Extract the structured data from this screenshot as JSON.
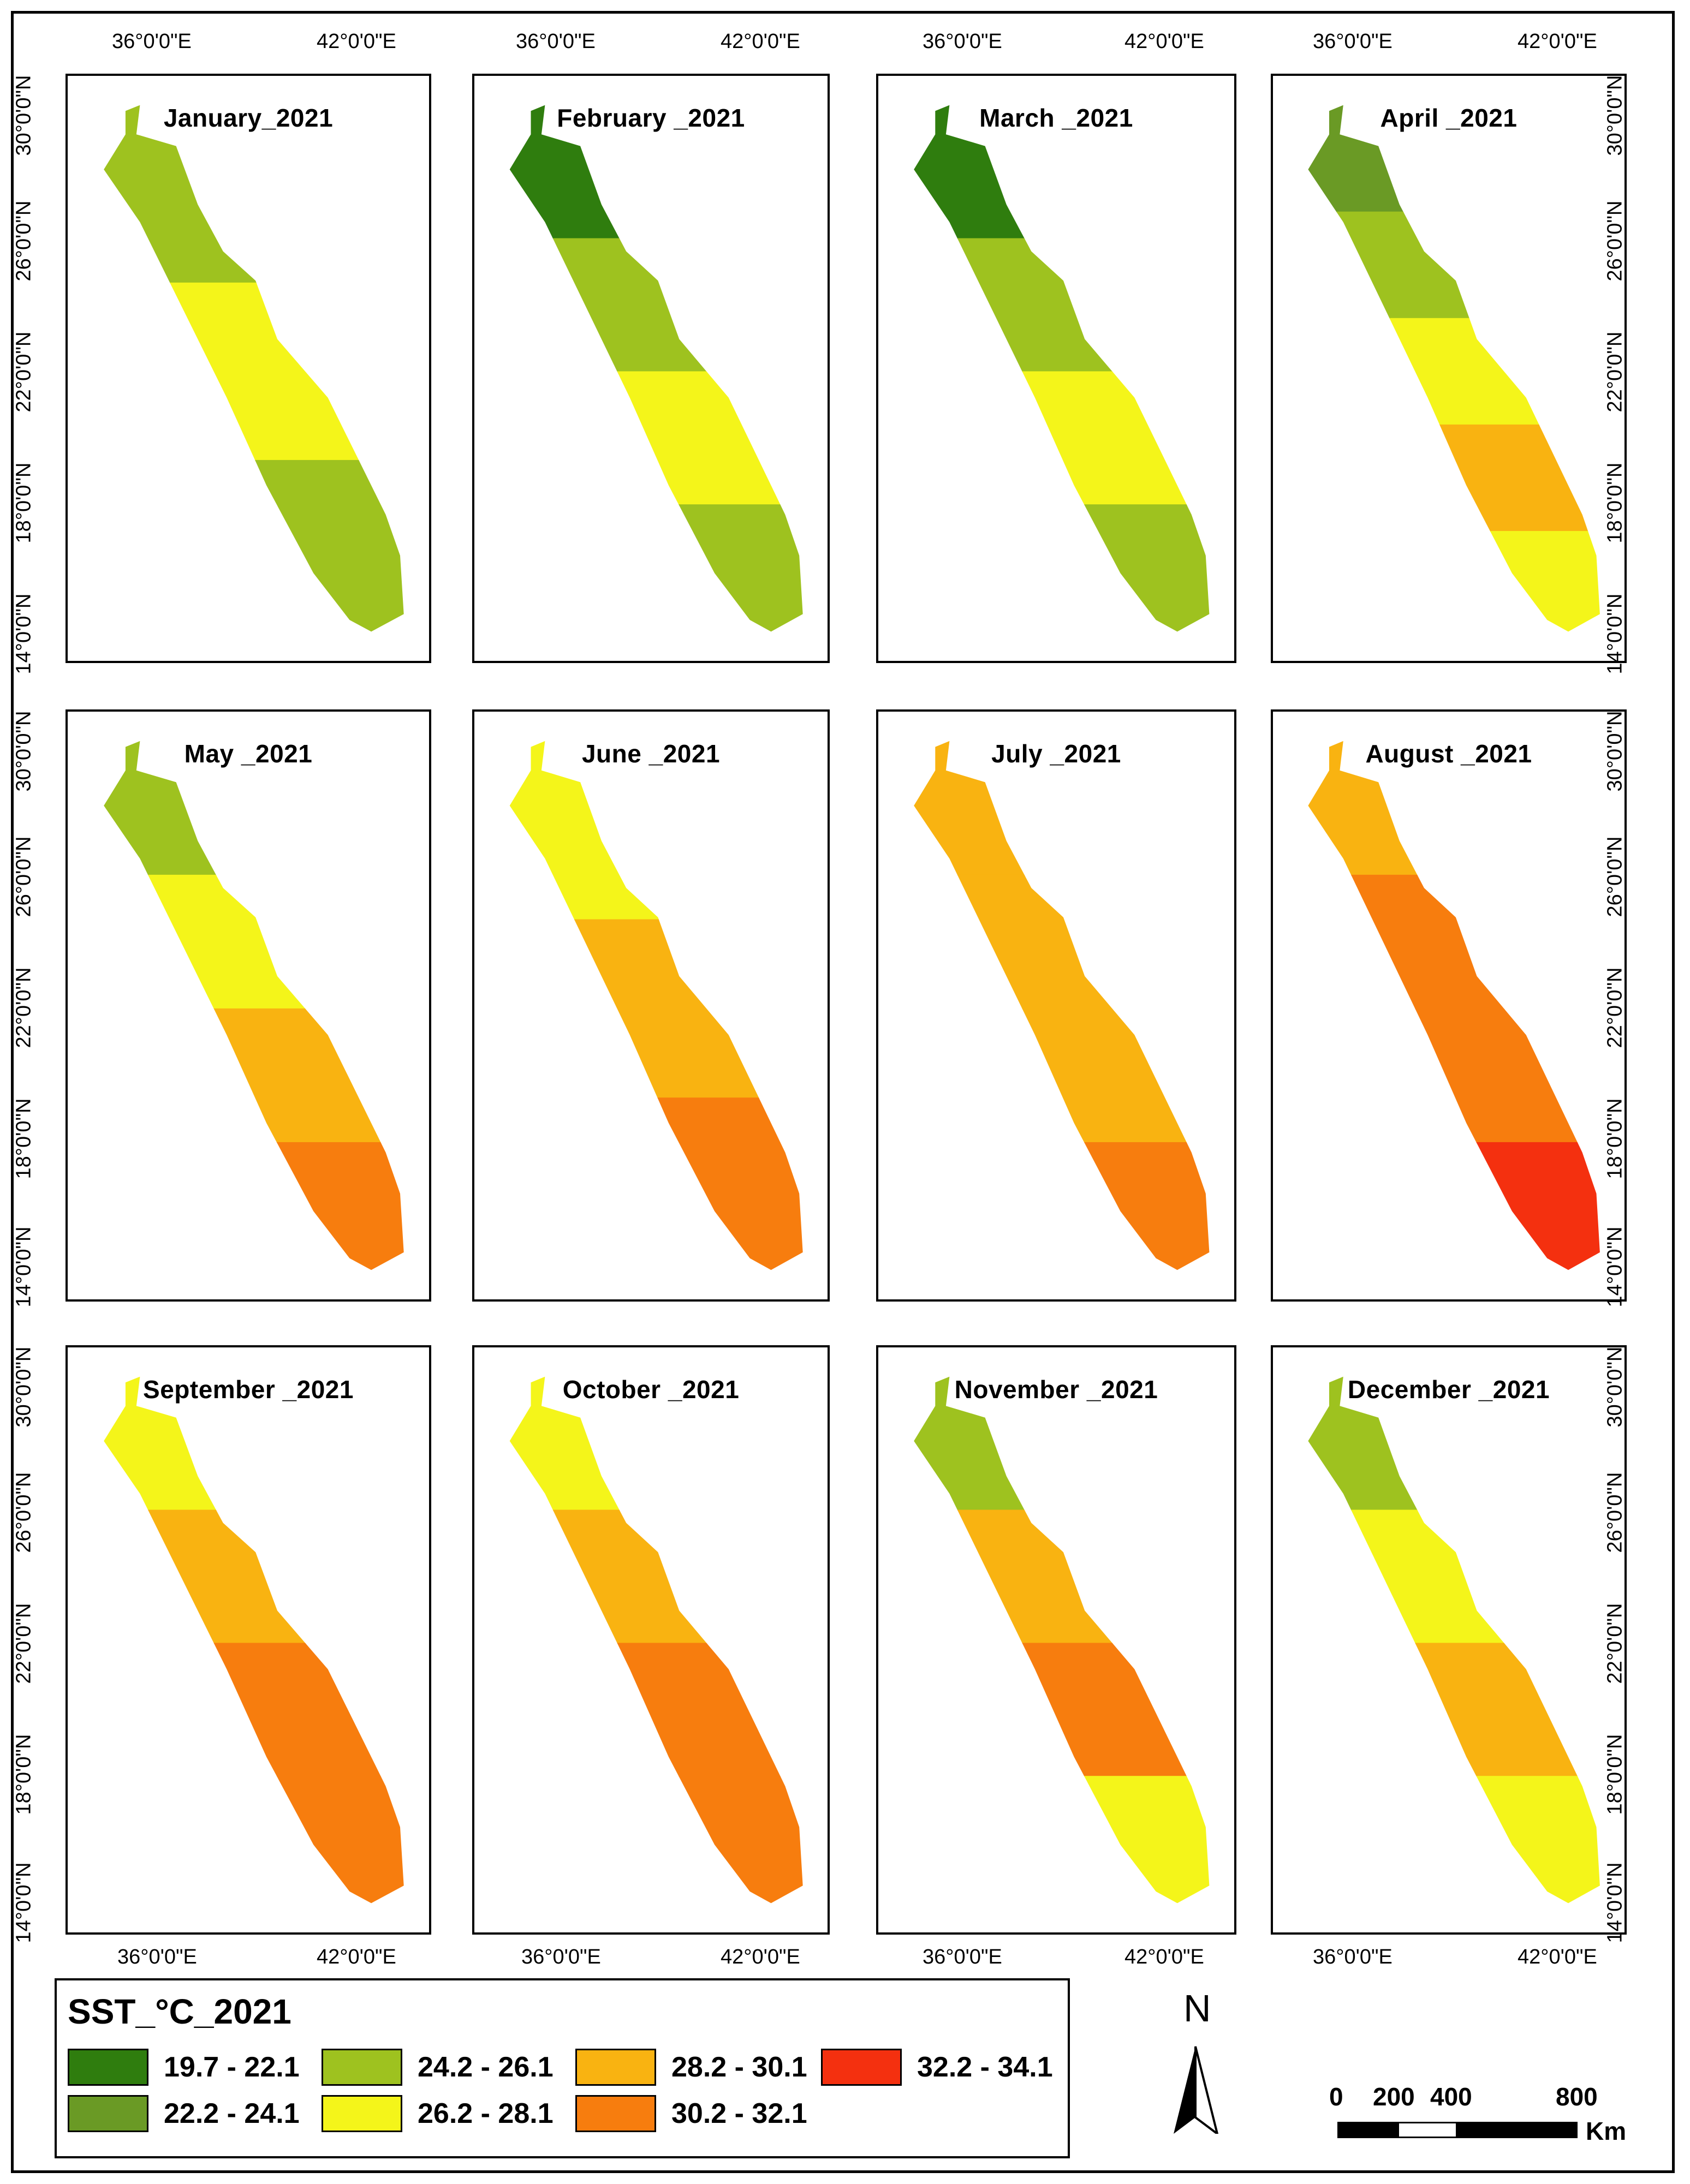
{
  "colors": {
    "c1": "#2f7d0e",
    "c2": "#6a9a25",
    "c3": "#9ec21f",
    "c4": "#f4f51a",
    "c5": "#f9b311",
    "c6": "#f77d0e",
    "c7": "#f4300f"
  },
  "axes": {
    "lon_left": "36°0'0\"E",
    "lon_right": "42°0'0\"E",
    "lat_labels": [
      "30°0'0\"N",
      "26°0'0\"N",
      "22°0'0\"N",
      "18°0'0\"N",
      "14°0'0\"N"
    ]
  },
  "panels": [
    {
      "title": "January_2021",
      "zones": [
        "c3",
        "c4",
        "c3"
      ]
    },
    {
      "title": "February _2021",
      "zones": [
        "c1",
        "c3",
        "c4",
        "c3"
      ]
    },
    {
      "title": "March _2021",
      "zones": [
        "c1",
        "c3",
        "c4",
        "c3"
      ]
    },
    {
      "title": "April _2021",
      "zones": [
        "c2",
        "c3",
        "c4",
        "c5",
        "c4"
      ]
    },
    {
      "title": "May _2021",
      "zones": [
        "c3",
        "c4",
        "c5",
        "c6"
      ]
    },
    {
      "title": "June _2021",
      "zones": [
        "c4",
        "c5",
        "c6"
      ]
    },
    {
      "title": "July _2021",
      "zones": [
        "c5",
        "c5",
        "c5",
        "c6"
      ]
    },
    {
      "title": "August _2021",
      "zones": [
        "c5",
        "c6",
        "c6",
        "c7"
      ]
    },
    {
      "title": "September _2021",
      "zones": [
        "c4",
        "c5",
        "c6",
        "c6"
      ]
    },
    {
      "title": "October _2021",
      "zones": [
        "c4",
        "c5",
        "c6",
        "c6"
      ]
    },
    {
      "title": "November _2021",
      "zones": [
        "c3",
        "c5",
        "c6",
        "c4"
      ]
    },
    {
      "title": "December _2021",
      "zones": [
        "c3",
        "c4",
        "c5",
        "c4"
      ]
    }
  ],
  "legend": {
    "title": "SST_°C_2021",
    "items": [
      {
        "range": "19.7 - 22.1",
        "color": "#2f7d0e"
      },
      {
        "range": "22.2 - 24.1",
        "color": "#6a9a25"
      },
      {
        "range": "24.2 - 26.1",
        "color": "#9ec21f"
      },
      {
        "range": "26.2 - 28.1",
        "color": "#f4f51a"
      },
      {
        "range": "28.2 - 30.1",
        "color": "#f9b311"
      },
      {
        "range": "30.2 - 32.1",
        "color": "#f77d0e"
      },
      {
        "range": "32.2 - 34.1",
        "color": "#f4300f"
      }
    ]
  },
  "north_arrow": {
    "letter": "N"
  },
  "scale_bar": {
    "labels": [
      "0",
      "200",
      "400",
      "800"
    ],
    "unit": "Km"
  }
}
